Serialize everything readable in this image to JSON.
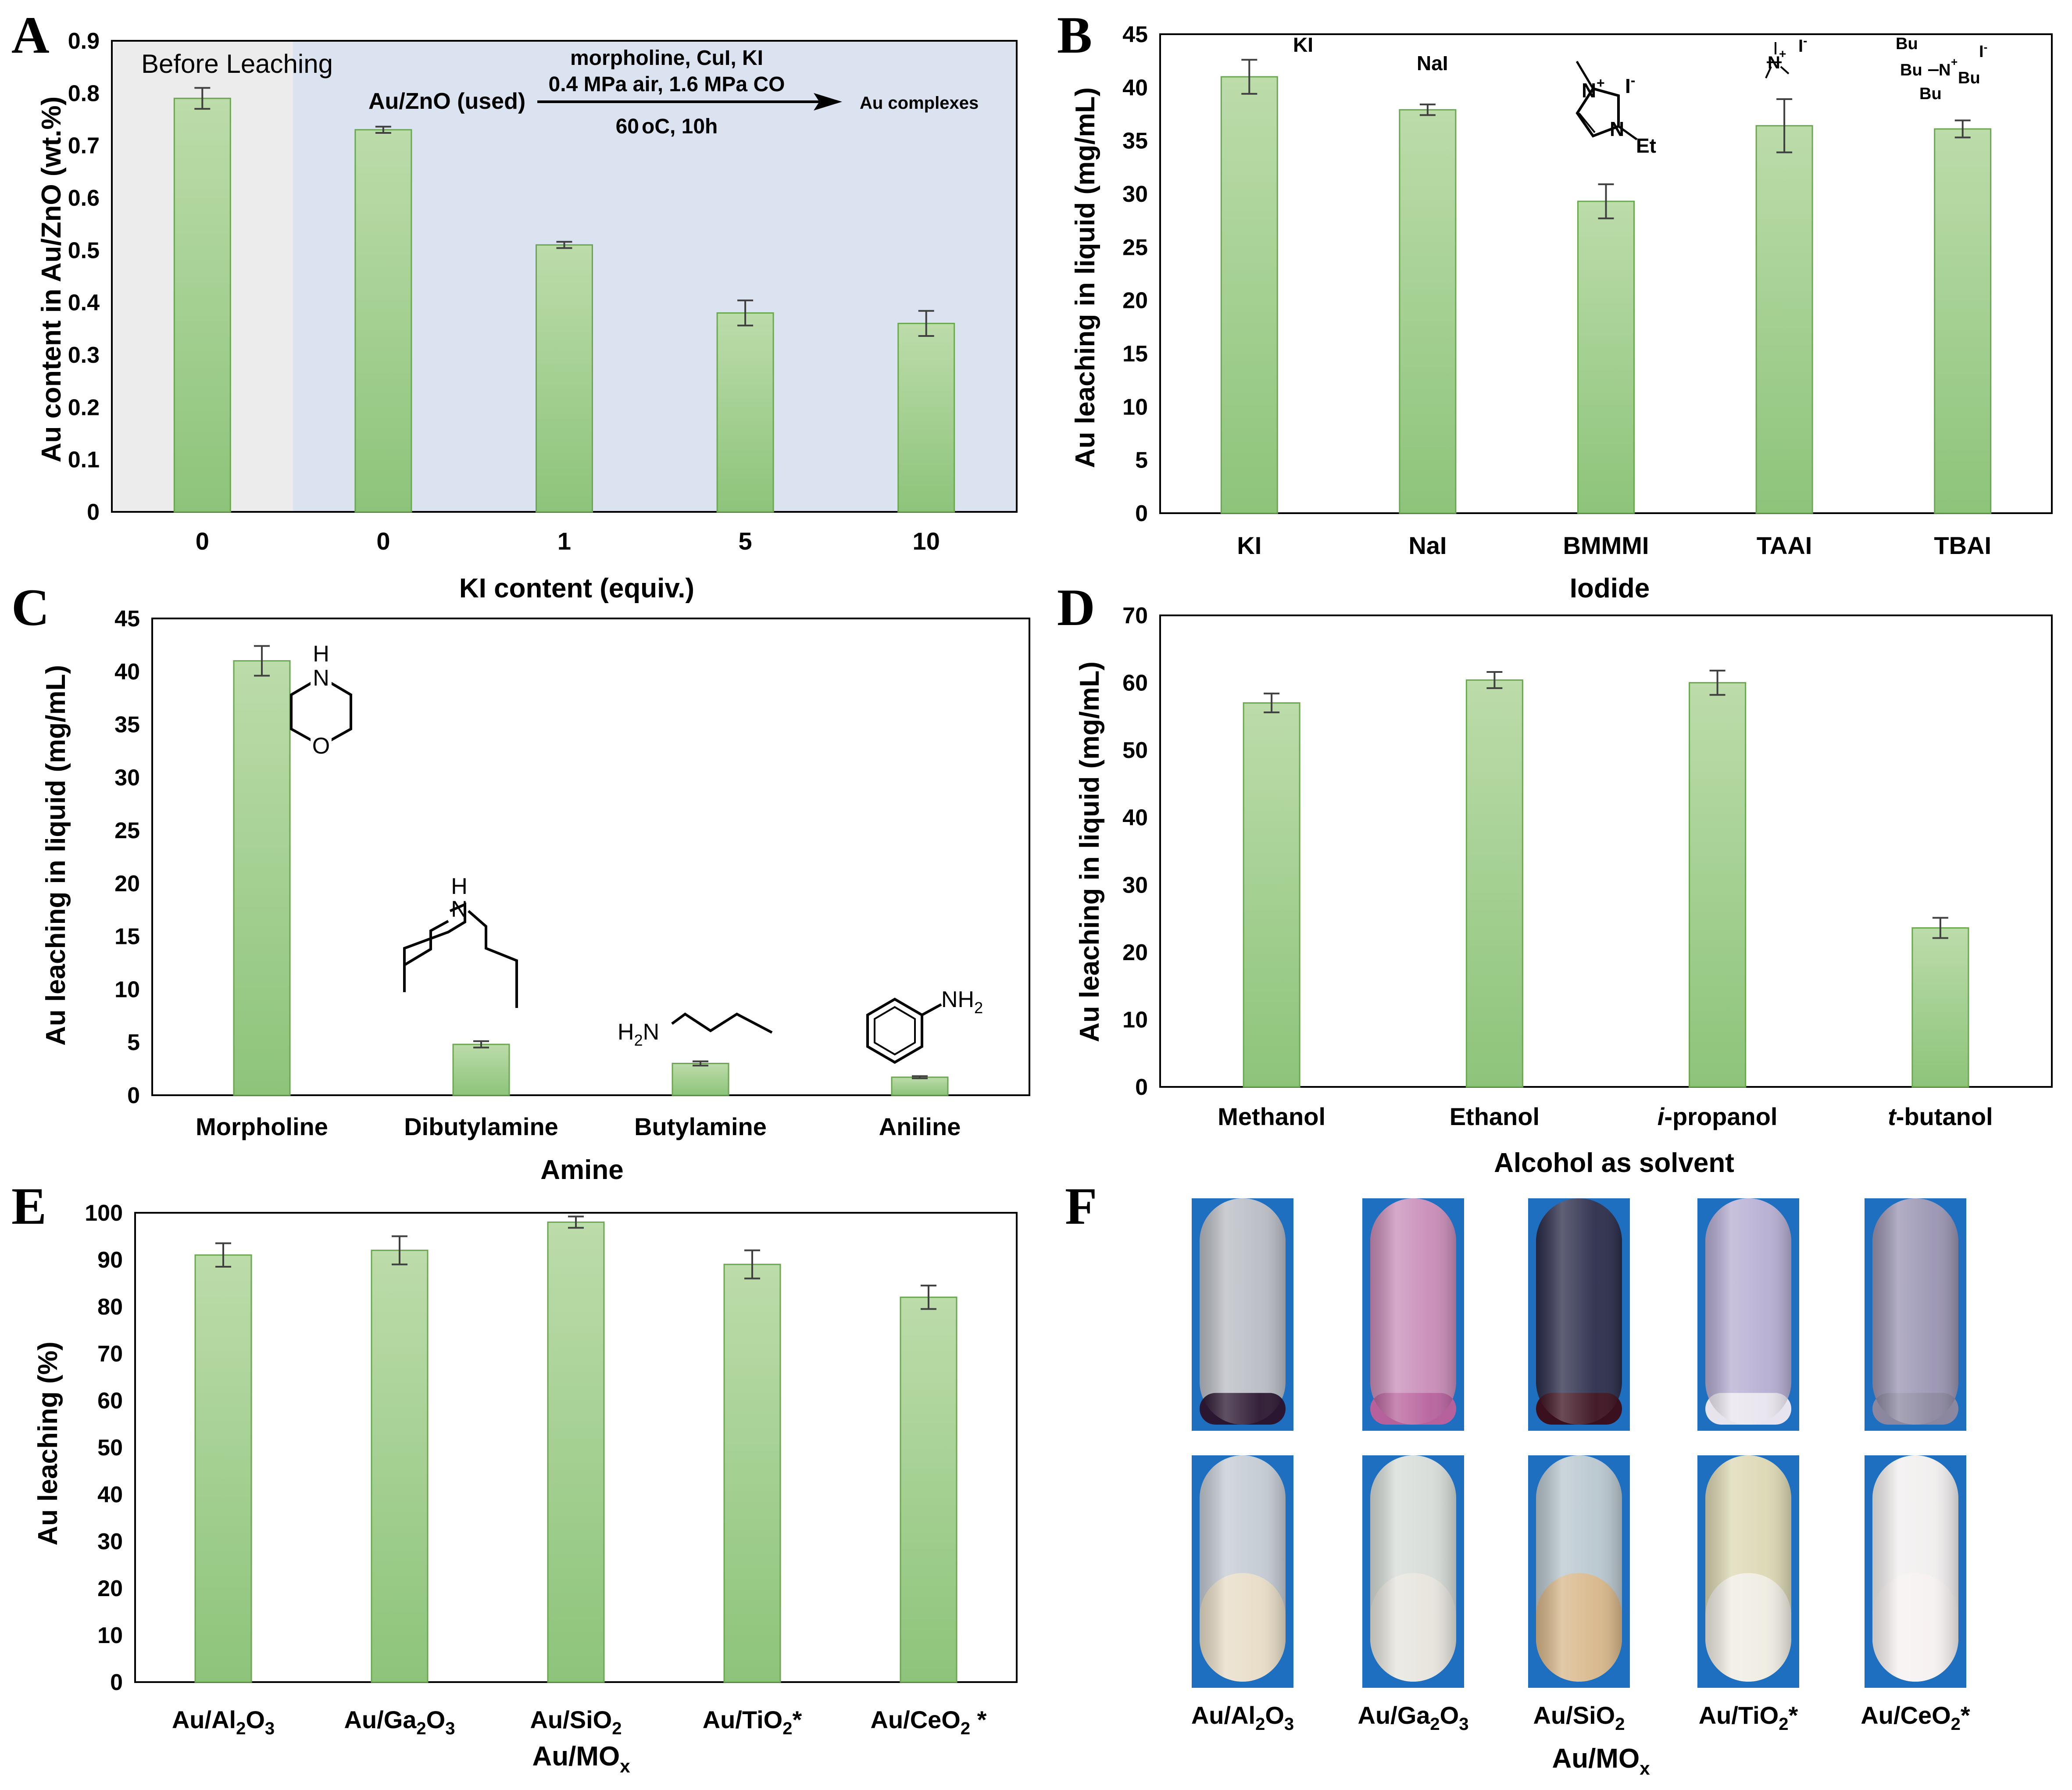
{
  "figure": {
    "panel_labels": [
      "A",
      "B",
      "C",
      "D",
      "E",
      "F"
    ],
    "colors": {
      "bar_top": "#bcdcaa",
      "bar_bottom": "#8dc47a",
      "bar_edge": "#6aa84f",
      "errorbar": "#404040",
      "shade_before": "#ececec",
      "shade_used": "#dbe3f1"
    }
  },
  "chart_data": [
    {
      "panel": "A",
      "type": "bar",
      "categories": [
        "0",
        "0",
        "1",
        "5",
        "10"
      ],
      "values": [
        0.79,
        0.73,
        0.51,
        0.38,
        0.36
      ],
      "errors": [
        0.02,
        0.006,
        0.006,
        0.024,
        0.024
      ],
      "xlabel": "KI content (equiv.)",
      "ylabel": "Au content in Au/ZnO (wt.%)",
      "ylim": [
        0,
        0.9
      ],
      "yticks": [
        "0",
        "0.1",
        "0.2",
        "0.3",
        "0.4",
        "0.5",
        "0.6",
        "0.7",
        "0.8",
        "0.9"
      ],
      "regions": [
        {
          "label": "Before Leaching",
          "from_category": 0,
          "to_category": 0,
          "color": "#ececec"
        },
        {
          "label": "",
          "from_category": 1,
          "to_category": 4,
          "color": "#dbe3f1"
        }
      ],
      "reaction": {
        "reactant": "Au/ZnO (used)",
        "conditions_top1": "morpholine, CuI, KI",
        "conditions_top2": "0.4 MPa air, 1.6 MPa CO",
        "temperature": "60",
        "temp_unit": "oC, 10h",
        "product": "Au complexes"
      },
      "grid": false
    },
    {
      "panel": "B",
      "type": "bar",
      "categories": [
        "KI",
        "NaI",
        "BMMMI",
        "TAAI",
        "TBAI"
      ],
      "values": [
        41.0,
        37.9,
        29.3,
        36.4,
        36.1
      ],
      "errors": [
        1.6,
        0.5,
        1.6,
        2.5,
        0.8
      ],
      "xlabel": "Iodide",
      "ylabel": "Au leaching in liquid (mg/mL)",
      "ylim": [
        0,
        45
      ],
      "yticks": [
        "0",
        "5",
        "10",
        "15",
        "20",
        "25",
        "30",
        "35",
        "40",
        "45"
      ],
      "structure_labels": {
        "ki": "KI",
        "nai": "NaI",
        "bmmmi_n1": "N",
        "bmmmi_plus": "+",
        "bmmmi_n2": "N",
        "bmmmi_et": "Et",
        "iodide": "I",
        "minus": "-",
        "taai_n": "N",
        "tbai_bu": "Bu",
        "tbai_n": "N"
      },
      "grid": false
    },
    {
      "panel": "C",
      "type": "bar",
      "categories": [
        "Morpholine",
        "Dibutylamine",
        "Butylamine",
        "Aniline"
      ],
      "values": [
        41.0,
        4.8,
        3.0,
        1.7
      ],
      "errors": [
        1.4,
        0.3,
        0.2,
        0.1
      ],
      "xlabel": "Amine",
      "ylabel": "Au leaching in liquid (mg/mL)",
      "ylim": [
        0,
        45
      ],
      "yticks": [
        "0",
        "5",
        "10",
        "15",
        "20",
        "25",
        "30",
        "35",
        "40",
        "45"
      ],
      "structure_labels": {
        "h": "H",
        "n": "N",
        "o": "O",
        "h2n": "H",
        "sub2": "2",
        "nh2": "NH"
      },
      "grid": false
    },
    {
      "panel": "D",
      "type": "bar",
      "categories": [
        "Methanol",
        "Ethanol",
        "i-propanol",
        "t-butanol"
      ],
      "category_prefixes": [
        "",
        "",
        "i",
        "t"
      ],
      "category_suffixes": [
        "Methanol",
        "Ethanol",
        "-propanol",
        "-butanol"
      ],
      "values": [
        57.0,
        60.4,
        60.0,
        23.6
      ],
      "errors": [
        1.4,
        1.2,
        1.8,
        1.5
      ],
      "xlabel": "Alcohol as solvent",
      "ylabel": "Au leaching in liquid (mg/mL)",
      "ylim": [
        0,
        70
      ],
      "yticks": [
        "0",
        "10",
        "20",
        "30",
        "40",
        "50",
        "60",
        "70"
      ],
      "grid": false
    },
    {
      "panel": "E",
      "type": "bar",
      "categories": [
        "Au/Al2O3",
        "Au/Ga2O3",
        "Au/SiO2",
        "Au/TiO2*",
        "Au/CeO2 *"
      ],
      "category_parts": [
        [
          "Au/Al",
          "2",
          "O",
          "3",
          ""
        ],
        [
          "Au/Ga",
          "2",
          "O",
          "3",
          ""
        ],
        [
          "Au/SiO",
          "2",
          "",
          "",
          ""
        ],
        [
          "Au/TiO",
          "2",
          "*",
          "",
          ""
        ],
        [
          "Au/CeO",
          "2",
          " *",
          "",
          ""
        ]
      ],
      "values": [
        91.0,
        92.0,
        98.0,
        89.0,
        82.0
      ],
      "errors": [
        2.5,
        3.0,
        1.2,
        3.0,
        2.5
      ],
      "xlabel": "Au/MOx",
      "xlabel_parts": [
        "Au/MO",
        "x"
      ],
      "ylabel": "Au leaching (%)",
      "ylim": [
        0,
        100
      ],
      "yticks": [
        "0",
        "10",
        "20",
        "30",
        "40",
        "50",
        "60",
        "70",
        "80",
        "90",
        "100"
      ],
      "grid": false
    }
  ],
  "photos": {
    "panel": "F",
    "labels": [
      "Au/Al2O3",
      "Au/Ga2O3",
      "Au/SiO2",
      "Au/TiO2*",
      "Au/CeO2*"
    ],
    "label_parts": [
      [
        "Au/Al",
        "2",
        "O",
        "3",
        ""
      ],
      [
        "Au/Ga",
        "2",
        "O",
        "3",
        ""
      ],
      [
        "Au/SiO",
        "2",
        "",
        "",
        ""
      ],
      [
        "Au/TiO",
        "2",
        "*",
        "",
        ""
      ],
      [
        "Au/CeO",
        "2",
        "*",
        "",
        ""
      ]
    ],
    "xlabel_parts": [
      "Au/MO",
      "x"
    ],
    "top_row_liquid_colors": [
      "#b9bcc4",
      "#c88cb8",
      "#2a2c4a",
      "#b6aed2",
      "#9a94b2"
    ],
    "top_row_sediment_colors": [
      "#2a1630",
      "#b7619c",
      "#3a0f1e",
      "#e8e4ee",
      "#8c87a0"
    ],
    "bottom_row_liquid_colors": [
      "#c4cbd3",
      "#d7dcd8",
      "#b9c7cf",
      "#dcd8b4",
      "#f1eeee"
    ],
    "bottom_row_sediment_colors": [
      "#e7dcc6",
      "#e6e4dc",
      "#d8b78a",
      "#efece2",
      "#f6f1f0"
    ]
  }
}
